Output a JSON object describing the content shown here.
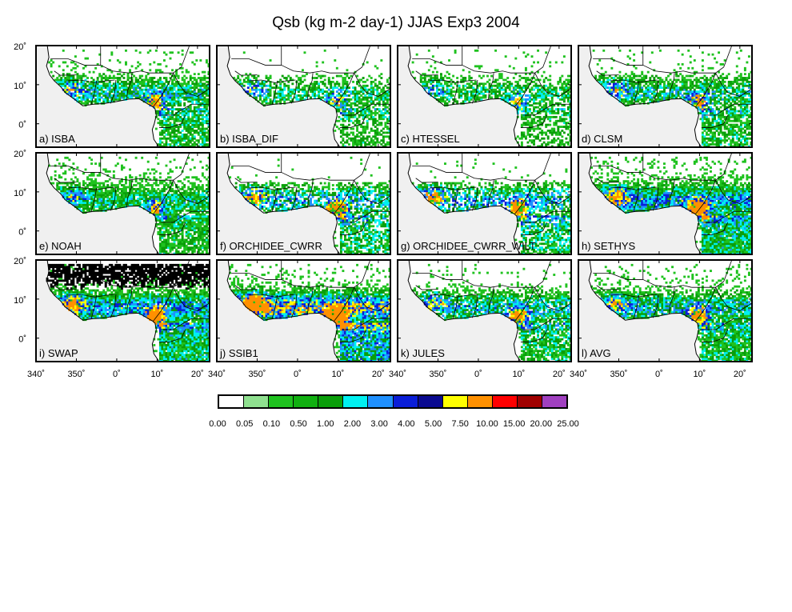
{
  "title": "Qsb (kg m-2 day-1) JJAS Exp3 2004",
  "lat_ticks": [
    "20˚",
    "10˚",
    "0˚"
  ],
  "lon_ticks": [
    "340˚",
    "350˚",
    "0˚",
    "10˚",
    "20˚"
  ],
  "panels": [
    {
      "label": "a) ISBA",
      "intensity": 1.0,
      "sparse": 0.25
    },
    {
      "label": "b) ISBA_DIF",
      "intensity": 0.85,
      "sparse": 0.55
    },
    {
      "label": "c) HTESSEL",
      "intensity": 0.8,
      "sparse": 0.45
    },
    {
      "label": "d) CLSM",
      "intensity": 1.0,
      "sparse": 0.35
    },
    {
      "label": "e) NOAH",
      "intensity": 0.9,
      "sparse": 0.1
    },
    {
      "label": "f) ORCHIDEE_CWRR",
      "intensity": 1.2,
      "sparse": 0.55
    },
    {
      "label": "g) ORCHIDEE_CWRR_WILT",
      "intensity": 1.2,
      "sparse": 0.55
    },
    {
      "label": "h) SETHYS",
      "intensity": 1.3,
      "sparse": 0.05
    },
    {
      "label": "i) SWAP",
      "intensity": 1.3,
      "sparse": 0.05,
      "black_north": true
    },
    {
      "label": "j) SSIB1",
      "intensity": 1.7,
      "sparse": 0.1
    },
    {
      "label": "k) JULES",
      "intensity": 1.1,
      "sparse": 0.35
    },
    {
      "label": "l) AVG",
      "intensity": 1.1,
      "sparse": 0.2
    }
  ],
  "colorbar": {
    "colors": [
      "#ffffff",
      "#8fe08f",
      "#1fc21f",
      "#11b011",
      "#0a9e0a",
      "#00f0f0",
      "#1f90ff",
      "#0a1ed8",
      "#0a0a90",
      "#ffff00",
      "#ff9000",
      "#ff0000",
      "#a00000",
      "#a040c0"
    ],
    "labels": [
      "0.00",
      "0.05",
      "0.10",
      "0.50",
      "1.00",
      "2.00",
      "3.00",
      "4.00",
      "5.00",
      "7.50",
      "10.00",
      "15.00",
      "20.00",
      "25.00"
    ]
  }
}
